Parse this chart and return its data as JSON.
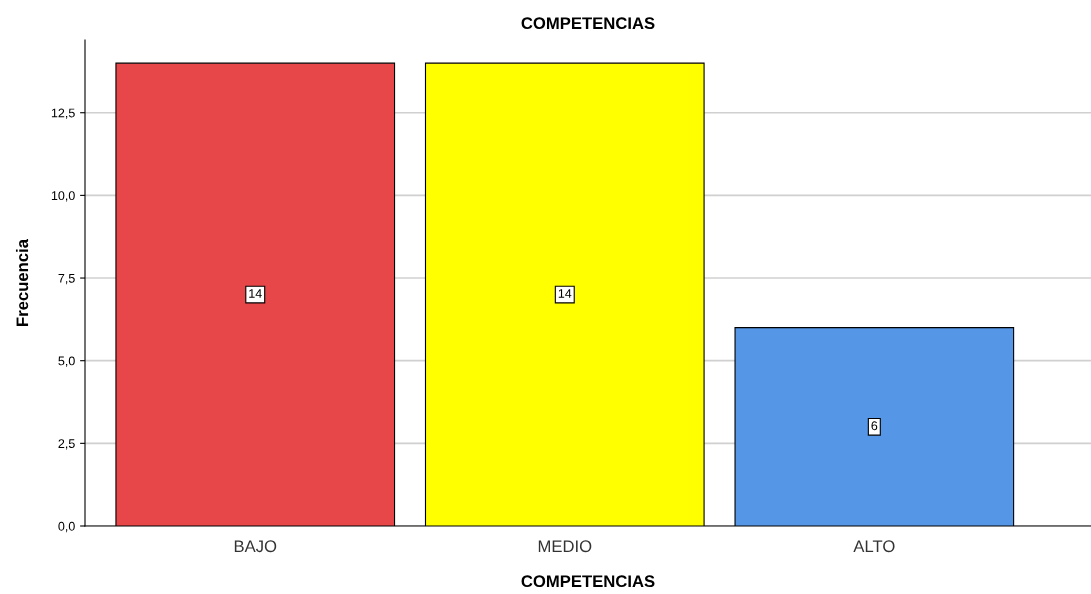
{
  "chart_data": {
    "type": "bar",
    "title": "COMPETENCIAS",
    "xlabel": "COMPETENCIAS",
    "ylabel": "Frecuencia",
    "categories": [
      "BAJO",
      "MEDIO",
      "ALTO"
    ],
    "values": [
      14,
      14,
      6
    ],
    "colors": [
      "#e8474a",
      "#ffff00",
      "#5596e6"
    ],
    "ylim": [
      0,
      14.7
    ],
    "yticks": [
      {
        "value": 0,
        "label": "0,0"
      },
      {
        "value": 2.5,
        "label": "2,5"
      },
      {
        "value": 5,
        "label": "5,0"
      },
      {
        "value": 7.5,
        "label": "7,5"
      },
      {
        "value": 10,
        "label": "10,0"
      },
      {
        "value": 12.5,
        "label": "12,5"
      }
    ],
    "grid": "y",
    "data_labels": true,
    "legend": false
  }
}
